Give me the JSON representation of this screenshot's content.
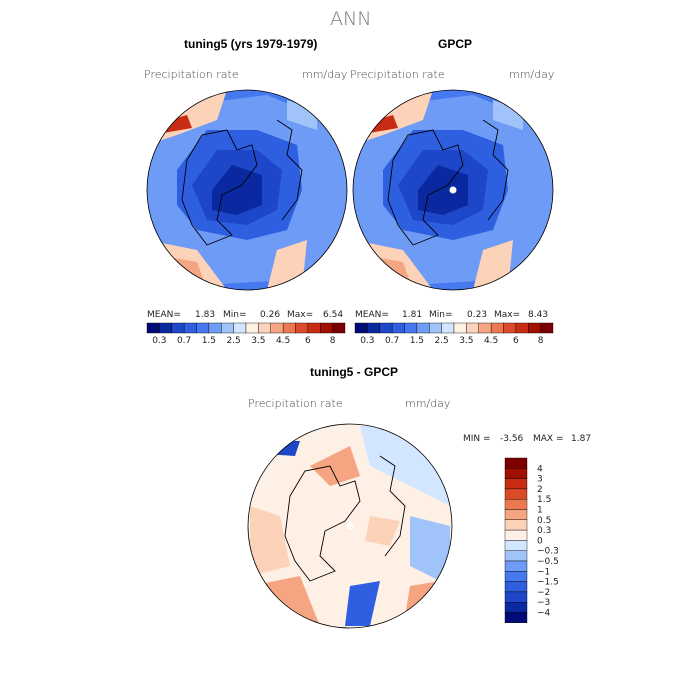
{
  "header": {
    "title": "ANN"
  },
  "chart_data": [
    {
      "type": "heatmap",
      "title": "tuning5 (yrs 1979-1979)",
      "variable": "Precipitation rate",
      "units": "mm/day",
      "projection": "north polar stereographic",
      "stats": {
        "mean_label": "MEAN=",
        "mean": "1.83",
        "min_label": "Min=",
        "min": "0.26",
        "max_label": "Max=",
        "max": "6.54"
      },
      "colorbar_levels": [
        "0.3",
        "0.7",
        "1.5",
        "2.5",
        "3.5",
        "4.5",
        "6",
        "8"
      ]
    },
    {
      "type": "heatmap",
      "title": "GPCP",
      "variable": "Precipitation rate",
      "units": "mm/day",
      "projection": "north polar stereographic",
      "stats": {
        "mean_label": "MEAN=",
        "mean": "1.81",
        "min_label": "Min=",
        "min": "0.23",
        "max_label": "Max=",
        "max": "8.43"
      },
      "colorbar_levels": [
        "0.3",
        "0.7",
        "1.5",
        "2.5",
        "3.5",
        "4.5",
        "6",
        "8"
      ]
    },
    {
      "type": "heatmap",
      "title": "tuning5 - GPCP",
      "variable": "Precipitation rate",
      "units": "mm/day",
      "projection": "north polar stereographic",
      "stats": {
        "min_label": "MIN =",
        "min": "-3.56",
        "max_label": "MAX =",
        "max": "1.87"
      },
      "colorbar_levels": [
        "4",
        "3",
        "2",
        "1.5",
        "1",
        "0.5",
        "0.3",
        "0",
        "−0.3",
        "−0.5",
        "−1",
        "−1.5",
        "−2",
        "−3",
        "−4"
      ]
    }
  ],
  "colors": {
    "seq": [
      "#000a78",
      "#0a28a0",
      "#1e46c8",
      "#2d5fe0",
      "#4678f0",
      "#6e9bf5",
      "#a0c3fa",
      "#d2e6ff",
      "#fff0e6",
      "#fcd2b9",
      "#f5a582",
      "#eb7850",
      "#dc4b28",
      "#c82d14",
      "#a01000",
      "#7d0000"
    ],
    "div": [
      "#000a78",
      "#0a28a0",
      "#1e46c8",
      "#2d5fe0",
      "#4678f0",
      "#6e9bf5",
      "#a0c3fa",
      "#d2e6ff",
      "#fff0e6",
      "#fcd2b9",
      "#f5a582",
      "#eb7850",
      "#dc4b28",
      "#c82d14",
      "#a01000",
      "#7d0000"
    ]
  }
}
